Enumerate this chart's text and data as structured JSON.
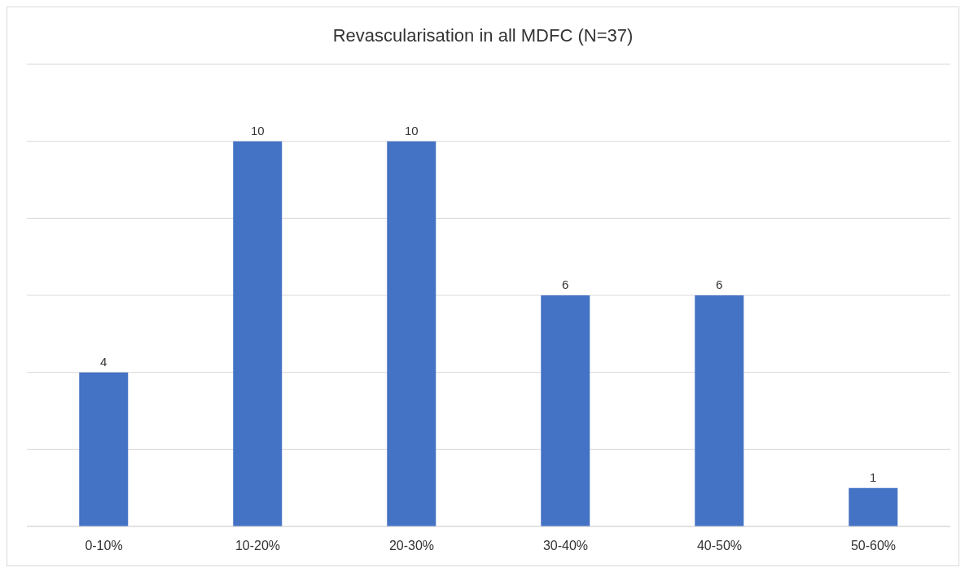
{
  "chart_data": {
    "type": "bar",
    "title": "Revascularisation in all MDFC (N=37)",
    "categories": [
      "0-10%",
      "10-20%",
      "20-30%",
      "30-40%",
      "40-50%",
      "50-60%"
    ],
    "values": [
      4,
      10,
      10,
      6,
      6,
      1
    ],
    "color": "#4472c4",
    "ylim": [
      0,
      12
    ],
    "yticks": [
      {
        "value": 0,
        "label": null
      },
      {
        "value": 2,
        "label": null
      },
      {
        "value": 4,
        "label": null
      },
      {
        "value": 6,
        "label": null
      },
      {
        "value": 8,
        "label": null
      },
      {
        "value": 10,
        "label": null
      },
      {
        "value": 12,
        "label": null
      }
    ],
    "tick_labels": "x",
    "grid": "y",
    "data_labels": true,
    "legend": false
  }
}
